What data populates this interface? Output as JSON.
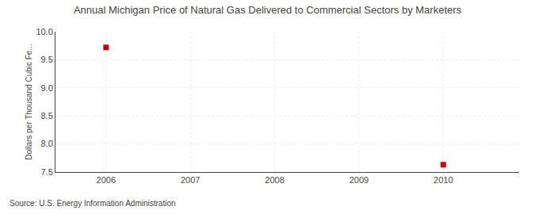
{
  "chart_data": {
    "type": "scatter",
    "title": "Annual Michigan Price of Natural Gas Delivered to Commercial Sectors by Marketers",
    "ylabel": "Dollars per Thousand Cubic Fe...",
    "annotation": "Source: U.S. Energy Information Administration",
    "x": [
      2006,
      2010
    ],
    "values": [
      9.72,
      7.63
    ],
    "color": "#cc0000",
    "marker": "square",
    "xlim": [
      2005.4,
      2010.9
    ],
    "ylim": [
      7.5,
      10.0
    ],
    "xticks": [
      2006,
      2007,
      2008,
      2009,
      2010
    ],
    "yticks": [
      7.5,
      {
        "value": 8,
        "label": "8.0"
      },
      8.5,
      {
        "value": 9,
        "label": "9.0"
      },
      9.5,
      {
        "value": 10,
        "label": "10.0"
      }
    ],
    "grid": true
  }
}
